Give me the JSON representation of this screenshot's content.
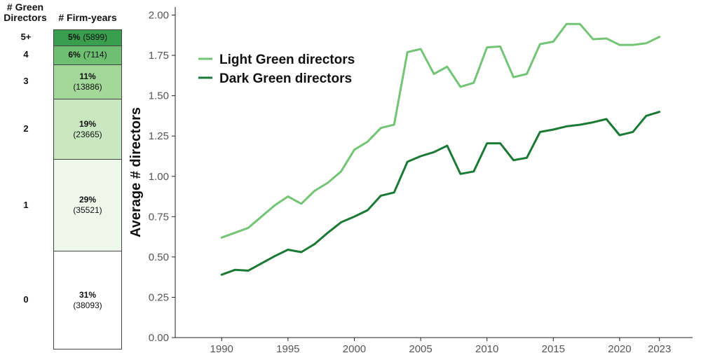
{
  "left_panel": {
    "header_green": "# Green Directors",
    "header_firm": "# Firm-years",
    "levels": [
      {
        "label": "5+",
        "pct": "5%",
        "count": "(5899)",
        "share": 0.05,
        "color": "#3a9e4f"
      },
      {
        "label": "4",
        "pct": "6%",
        "count": "(7114)",
        "share": 0.06,
        "color": "#6ebf71"
      },
      {
        "label": "3",
        "pct": "11%",
        "count": "(13886)",
        "share": 0.11,
        "color": "#a4d89b"
      },
      {
        "label": "2",
        "pct": "19%",
        "count": "(23665)",
        "share": 0.19,
        "color": "#c9e8c1"
      },
      {
        "label": "1",
        "pct": "29%",
        "count": "(35521)",
        "share": 0.29,
        "color": "#edf7ea"
      },
      {
        "label": "0",
        "pct": "31%",
        "count": "(38093)",
        "share": 0.31,
        "color": "#ffffff"
      }
    ]
  },
  "chart_data": {
    "type": "line",
    "title": "",
    "xlabel": "",
    "ylabel": "Average # directors",
    "xlim": [
      1986.5,
      2025.5
    ],
    "ylim": [
      0.0,
      2.05
    ],
    "x_ticks": [
      "1990",
      "1995",
      "2000",
      "2005",
      "2010",
      "2015",
      "2020",
      "2023"
    ],
    "x_tick_values": [
      1990,
      1995,
      2000,
      2005,
      2010,
      2015,
      2020,
      2023
    ],
    "y_ticks": [
      "0.00",
      "0.25",
      "0.50",
      "0.75",
      "1.00",
      "1.25",
      "1.50",
      "1.75",
      "2.00"
    ],
    "y_tick_values": [
      0.0,
      0.25,
      0.5,
      0.75,
      1.0,
      1.25,
      1.5,
      1.75,
      2.0
    ],
    "grid": false,
    "legend_position": "top-left",
    "x": [
      1990,
      1991,
      1992,
      1993,
      1994,
      1995,
      1996,
      1997,
      1998,
      1999,
      2000,
      2001,
      2002,
      2003,
      2004,
      2005,
      2006,
      2007,
      2008,
      2009,
      2010,
      2011,
      2012,
      2013,
      2014,
      2015,
      2016,
      2017,
      2018,
      2019,
      2020,
      2021,
      2022,
      2023
    ],
    "series": [
      {
        "name": "Light Green directors",
        "color": "#74c476",
        "values": [
          0.62,
          0.65,
          0.68,
          0.75,
          0.82,
          0.875,
          0.83,
          0.91,
          0.96,
          1.03,
          1.165,
          1.215,
          1.3,
          1.32,
          1.77,
          1.79,
          1.635,
          1.68,
          1.555,
          1.58,
          1.8,
          1.805,
          1.615,
          1.635,
          1.82,
          1.835,
          1.945,
          1.945,
          1.85,
          1.855,
          1.815,
          1.815,
          1.825,
          1.865
        ]
      },
      {
        "name": "Dark Green directors",
        "color": "#1a7a34",
        "values": [
          0.39,
          0.42,
          0.415,
          0.46,
          0.505,
          0.545,
          0.53,
          0.58,
          0.65,
          0.715,
          0.75,
          0.79,
          0.88,
          0.9,
          1.09,
          1.125,
          1.15,
          1.19,
          1.015,
          1.03,
          1.205,
          1.205,
          1.1,
          1.115,
          1.275,
          1.29,
          1.31,
          1.32,
          1.335,
          1.355,
          1.255,
          1.275,
          1.375,
          1.4
        ]
      }
    ]
  }
}
